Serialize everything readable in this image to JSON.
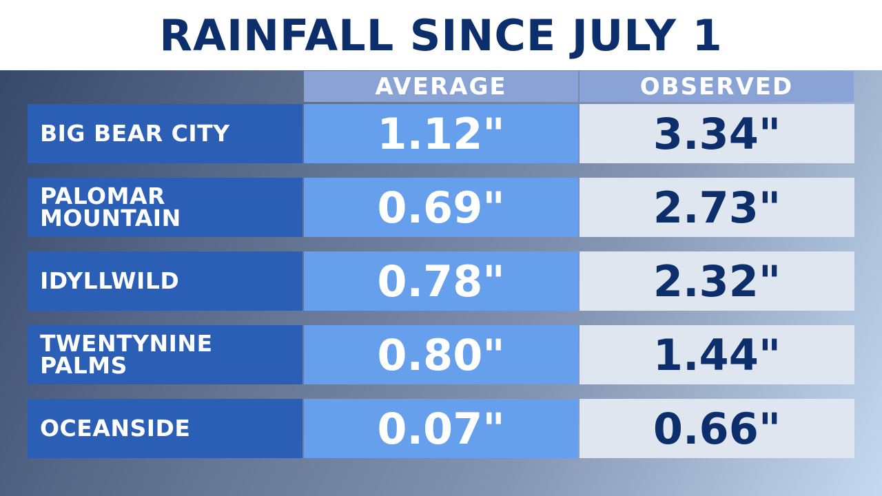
{
  "chart_data": {
    "type": "table",
    "title": "RAINFALL SINCE JULY 1",
    "columns": [
      "AVERAGE",
      "OBSERVED"
    ],
    "rows": [
      {
        "location": "BIG BEAR CITY",
        "average": "1.12\"",
        "observed": "3.34\""
      },
      {
        "location": "PALOMAR MOUNTAIN",
        "average": "0.69\"",
        "observed": "2.73\""
      },
      {
        "location": "IDYLLWILD",
        "average": "0.78\"",
        "observed": "2.32\""
      },
      {
        "location": "TWENTYNINE PALMS",
        "average": "0.80\"",
        "observed": "1.44\""
      },
      {
        "location": "OCEANSIDE",
        "average": "0.07\"",
        "observed": "0.66\""
      }
    ]
  },
  "colors": {
    "title_text": "#0c2f6b",
    "location_cell": "#2b5eb5",
    "average_cell": "#66a0ec",
    "observed_cell": "#e0e6ef",
    "header_cell": "#8aa3d6"
  }
}
